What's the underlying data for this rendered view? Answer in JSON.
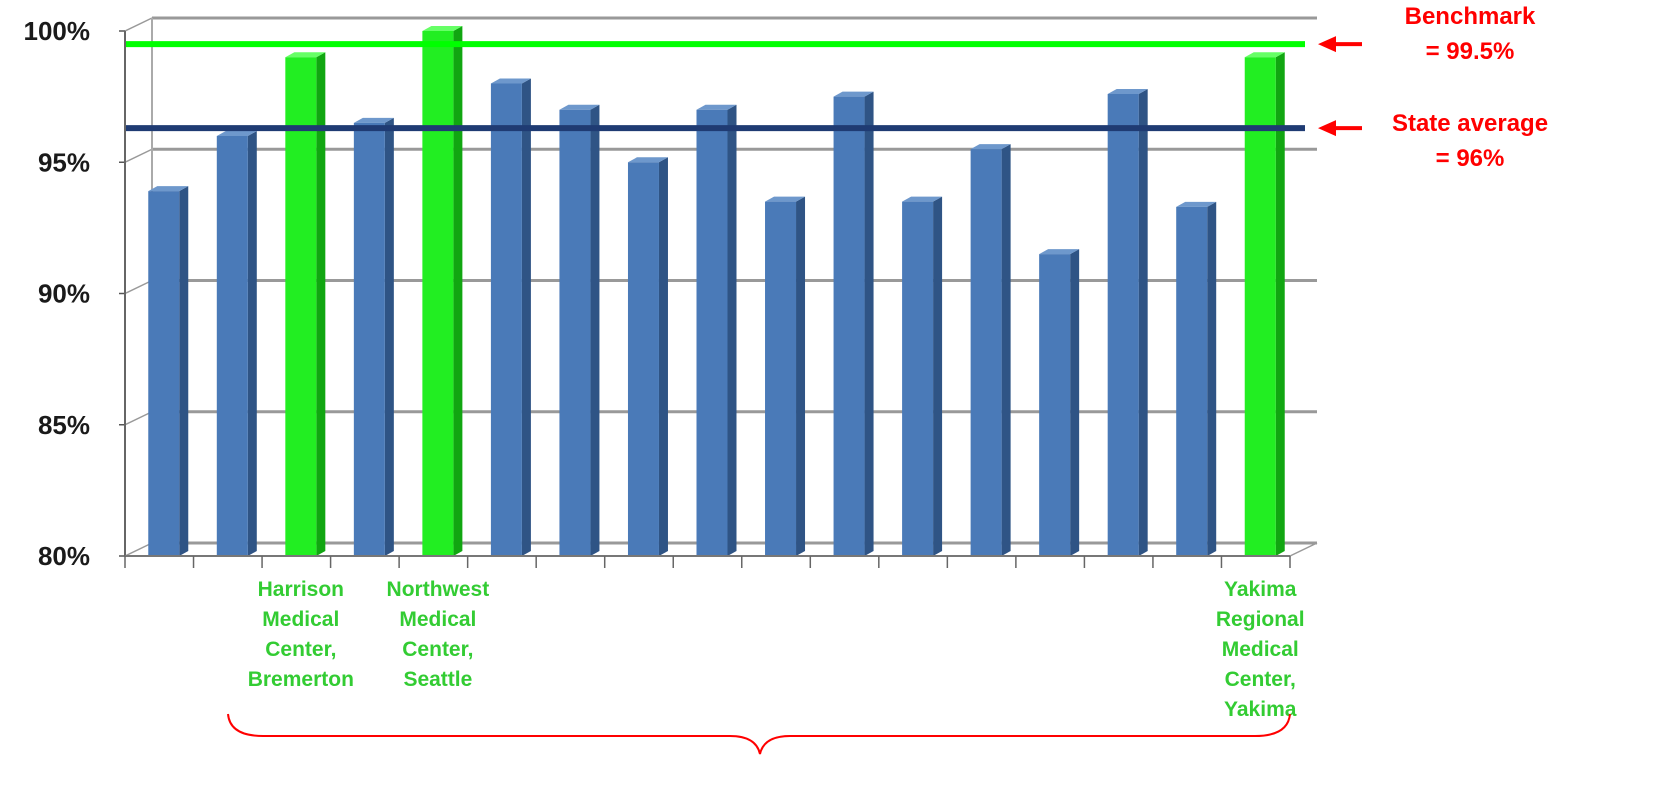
{
  "chart_data": {
    "type": "bar",
    "title": "",
    "xlabel": "",
    "ylabel": "",
    "ylim": [
      80,
      100
    ],
    "yticks": [
      "80%",
      "85%",
      "90%",
      "95%",
      "100%"
    ],
    "grid": true,
    "categories": [
      "",
      "",
      "Harrison Medical Center, Bremerton",
      "",
      "Northwest Medical Center, Seattle",
      "",
      "",
      "",
      "",
      "",
      "",
      "",
      "",
      "",
      "",
      "",
      "Yakima Regional Medical Center, Yakima"
    ],
    "category_label_lines": [
      [],
      [],
      [
        "Harrison",
        "Medical",
        "Center,",
        "Bremerton"
      ],
      [],
      [
        "Northwest",
        "Medical",
        "Center,",
        "Seattle"
      ],
      [],
      [],
      [],
      [],
      [],
      [],
      [],
      [],
      [],
      [],
      [],
      [
        "Yakima",
        "Regional",
        "Medical",
        "Center,",
        "Yakima"
      ]
    ],
    "values": [
      93.9,
      96.0,
      99.0,
      96.5,
      100.0,
      98.0,
      97.0,
      95.0,
      97.0,
      93.5,
      97.5,
      93.5,
      95.5,
      91.5,
      97.6,
      93.3,
      99.0
    ],
    "highlighted": [
      false,
      false,
      true,
      false,
      true,
      false,
      false,
      false,
      false,
      false,
      false,
      false,
      false,
      false,
      false,
      false,
      true
    ],
    "reference_lines": [
      {
        "label_lines": [
          "Benchmark",
          "=  99.5%"
        ],
        "value": 99.5,
        "color": "#00ff00"
      },
      {
        "label_lines": [
          "State average",
          "=  96%"
        ],
        "value": 96.3,
        "color": "#1f3b73"
      }
    ],
    "colors": {
      "bar": "#4a7ab8",
      "bar_side": "#2f5485",
      "bar_top": "#6e98cc",
      "highlight_bar": "#22ee22",
      "highlight_side": "#11a611",
      "highlight_top": "#66ff66",
      "callout": "#ff0000",
      "category_label": "#33cc33",
      "gridline": "#999999"
    }
  }
}
